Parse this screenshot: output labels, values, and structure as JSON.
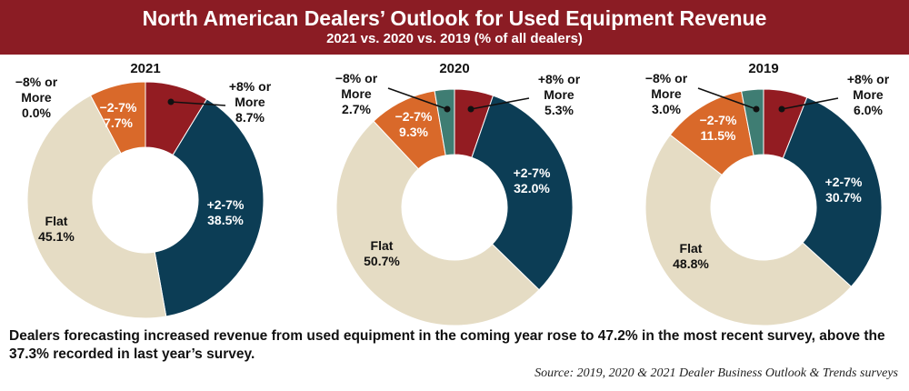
{
  "header": {
    "title": "North American Dealers’ Outlook for Used Equipment Revenue",
    "subtitle": "2021 vs. 2020 vs. 2019 (% of all dealers)"
  },
  "colors": {
    "header_bg": "#8b1c24",
    "plus8": "#931c22",
    "plus2_7": "#0c3d55",
    "flat": "#e5dcc4",
    "minus2_7": "#d9692a",
    "minus8": "#3f7d73"
  },
  "chart_data": [
    {
      "type": "pie",
      "title": "2021",
      "segments": [
        {
          "key": "plus8",
          "label_lines": [
            "+8% or",
            "More"
          ],
          "value": 8.7,
          "value_text": "8.7%"
        },
        {
          "key": "plus2_7",
          "label_lines": [
            "+2-7%"
          ],
          "value": 38.5,
          "value_text": "38.5%"
        },
        {
          "key": "flat",
          "label_lines": [
            "Flat"
          ],
          "value": 45.1,
          "value_text": "45.1%"
        },
        {
          "key": "minus2_7",
          "label_lines": [
            "−2-7%"
          ],
          "value": 7.7,
          "value_text": "7.7%"
        },
        {
          "key": "minus8",
          "label_lines": [
            "−8% or",
            "More"
          ],
          "value": 0.0,
          "value_text": "0.0%"
        }
      ]
    },
    {
      "type": "pie",
      "title": "2020",
      "segments": [
        {
          "key": "plus8",
          "label_lines": [
            "+8% or",
            "More"
          ],
          "value": 5.3,
          "value_text": "5.3%"
        },
        {
          "key": "plus2_7",
          "label_lines": [
            "+2-7%"
          ],
          "value": 32.0,
          "value_text": "32.0%"
        },
        {
          "key": "flat",
          "label_lines": [
            "Flat"
          ],
          "value": 50.7,
          "value_text": "50.7%"
        },
        {
          "key": "minus2_7",
          "label_lines": [
            "−2-7%"
          ],
          "value": 9.3,
          "value_text": "9.3%"
        },
        {
          "key": "minus8",
          "label_lines": [
            "−8% or",
            "More"
          ],
          "value": 2.7,
          "value_text": "2.7%"
        }
      ]
    },
    {
      "type": "pie",
      "title": "2019",
      "segments": [
        {
          "key": "plus8",
          "label_lines": [
            "+8% or",
            "More"
          ],
          "value": 6.0,
          "value_text": "6.0%"
        },
        {
          "key": "plus2_7",
          "label_lines": [
            "+2-7%"
          ],
          "value": 30.7,
          "value_text": "30.7%"
        },
        {
          "key": "flat",
          "label_lines": [
            "Flat"
          ],
          "value": 48.8,
          "value_text": "48.8%"
        },
        {
          "key": "minus2_7",
          "label_lines": [
            "−2-7%"
          ],
          "value": 11.5,
          "value_text": "11.5%"
        },
        {
          "key": "minus8",
          "label_lines": [
            "−8% or",
            "More"
          ],
          "value": 3.0,
          "value_text": "3.0%"
        }
      ]
    }
  ],
  "caption": "Dealers forecasting increased revenue from used equipment in the coming year rose to 47.2% in the most recent survey, above the 37.3% recorded in last year’s survey.",
  "source": "Source: 2019, 2020 & 2021 Dealer Business Outlook & Trends surveys"
}
